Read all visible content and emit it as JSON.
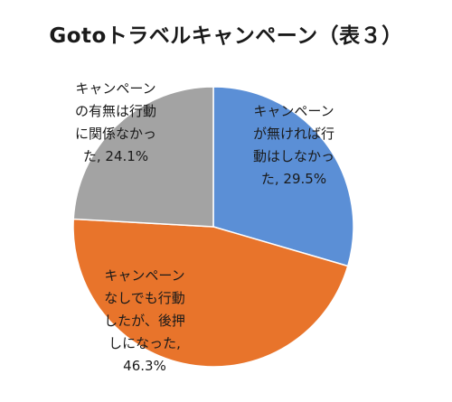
{
  "chart_data": {
    "type": "pie",
    "title": "Gotoトラベルキャンペーン（表３）",
    "start_angle_deg": 0,
    "direction": "clockwise",
    "slices": [
      {
        "label": "キャンペーンが無ければ行動はしなかった",
        "value": 29.5,
        "value_text": "29.5%",
        "color": "#5b8fd6",
        "label_lines": [
          "キャンペーン",
          "が無ければ行",
          "動はしなかっ",
          "た, 29.5%"
        ]
      },
      {
        "label": "キャンペーンなしでも行動したが、後押しになった",
        "value": 46.3,
        "value_text": "46.3%",
        "color": "#e8742b",
        "label_lines": [
          "キャンペーン",
          "なしでも行動",
          "したが、後押",
          "しになった,",
          "46.3%"
        ]
      },
      {
        "label": "キャンペーンの有無は行動に関係なかった",
        "value": 24.1,
        "value_text": "24.1%",
        "color": "#a3a3a3",
        "label_lines": [
          "キャンペーン",
          "の有無は行動",
          "に関係なかっ",
          "た, 24.1%"
        ]
      }
    ]
  }
}
